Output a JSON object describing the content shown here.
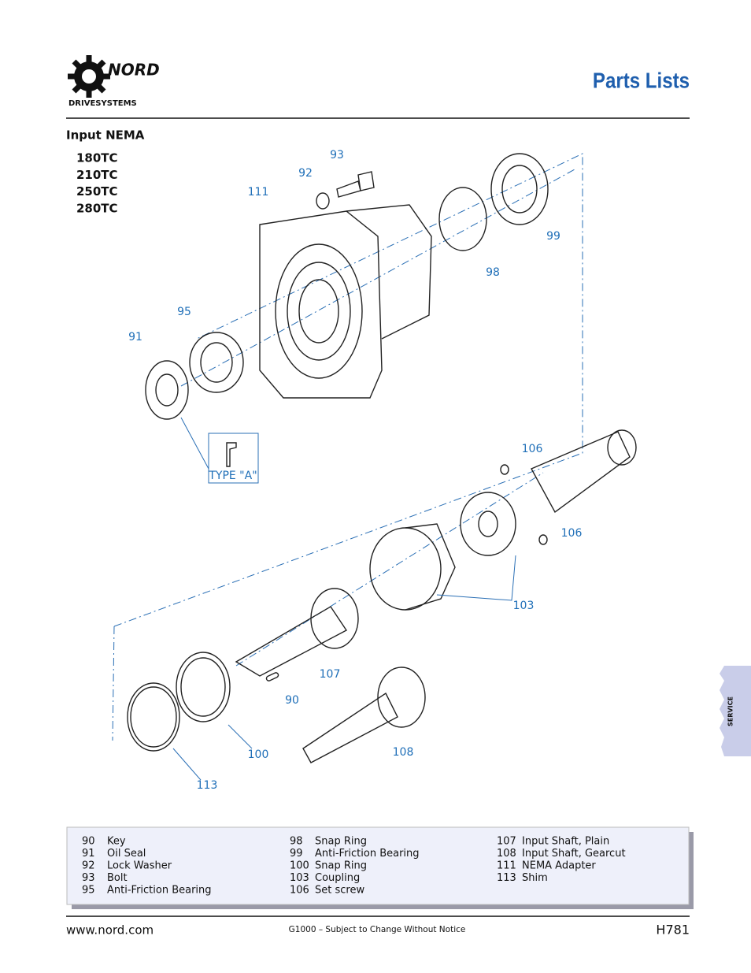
{
  "header": {
    "logo_text": "NORD",
    "logo_subtitle": "DRIVESYSTEMS",
    "title": "Parts Lists"
  },
  "section": {
    "title": "Input NEMA",
    "models": [
      "180TC",
      "210TC",
      "250TC",
      "280TC"
    ]
  },
  "diagram": {
    "callouts": [
      "93",
      "92",
      "111",
      "99",
      "98",
      "95",
      "91",
      "TYPE \"A\"",
      "106",
      "106",
      "103",
      "107",
      "90",
      "100",
      "108",
      "113"
    ]
  },
  "side_tab": "SERVICE",
  "parts": {
    "columns": [
      [
        [
          "90",
          "Key"
        ],
        [
          "91",
          "Oil Seal"
        ],
        [
          "92",
          "Lock Washer"
        ],
        [
          "93",
          "Bolt"
        ],
        [
          "95",
          "Anti-Friction Bearing"
        ]
      ],
      [
        [
          "98",
          "Snap Ring"
        ],
        [
          "99",
          "Anti-Friction Bearing"
        ],
        [
          "100",
          "Snap Ring"
        ],
        [
          "103",
          "Coupling"
        ],
        [
          "106",
          "Set screw"
        ]
      ],
      [
        [
          "107",
          "Input Shaft, Plain"
        ],
        [
          "108",
          "Input Shaft, Gearcut"
        ],
        [
          "111",
          "NEMA Adapter"
        ],
        [
          "113",
          "Shim"
        ]
      ]
    ]
  },
  "footer": {
    "url": "www.nord.com",
    "note": "G1000 – Subject to Change Without Notice",
    "page": "H781"
  }
}
